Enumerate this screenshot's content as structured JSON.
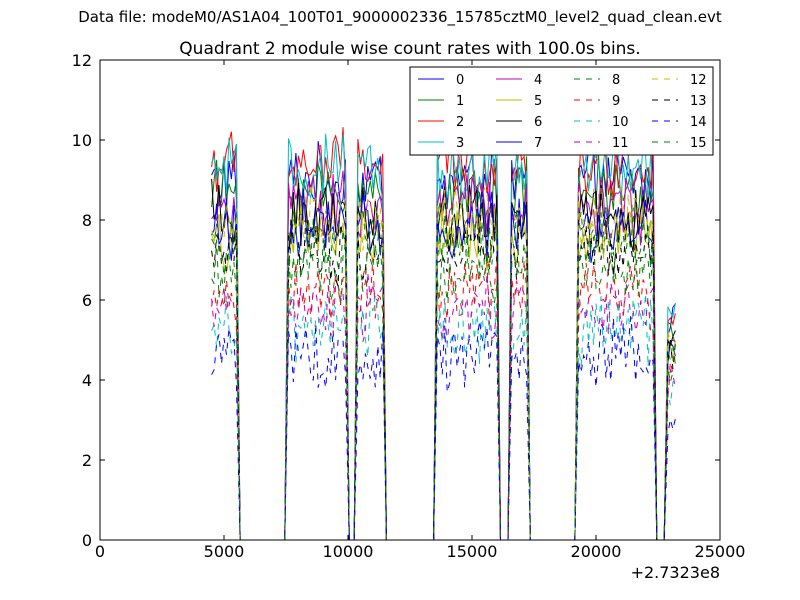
{
  "suptitle": "Data file: modeM0/AS1A04_100T01_9000002336_15785cztM0_level2_quad_clean.evt",
  "chart_data": {
    "type": "line",
    "title": "Quadrant 2 module wise count rates with 100.0s bins.",
    "xlabel": "",
    "ylabel": "",
    "xlim": [
      0,
      25000
    ],
    "ylim": [
      0,
      12
    ],
    "xticks": [
      "0",
      "5000",
      "10000",
      "15000",
      "20000",
      "25000"
    ],
    "xtick_values": [
      0,
      5000,
      10000,
      15000,
      20000,
      25000
    ],
    "yticks": [
      "0",
      "2",
      "4",
      "6",
      "8",
      "10",
      "12"
    ],
    "ytick_values": [
      0,
      2,
      4,
      6,
      8,
      10,
      12
    ],
    "x_offset_label": "+2.7323e8",
    "legend_position": "top-right",
    "legend_columns": 4,
    "segments": [
      {
        "start": 4500,
        "end": 5500
      },
      {
        "start": 7600,
        "end": 9900
      },
      {
        "start": 10400,
        "end": 11400
      },
      {
        "start": 13600,
        "end": 16000
      },
      {
        "start": 16600,
        "end": 17200
      },
      {
        "start": 19300,
        "end": 22300
      },
      {
        "start": 22900,
        "end": 23200
      }
    ],
    "drops": [
      5700,
      7400,
      10100,
      11500,
      13500,
      16300,
      17400,
      19200,
      22500,
      23000
    ],
    "series": [
      {
        "name": "0",
        "color": "#0000ff",
        "dash": "solid",
        "level": 9.0
      },
      {
        "name": "1",
        "color": "#008000",
        "dash": "solid",
        "level": 8.7
      },
      {
        "name": "2",
        "color": "#ff0000",
        "dash": "solid",
        "level": 9.4
      },
      {
        "name": "3",
        "color": "#00bfbf",
        "dash": "solid",
        "level": 9.2
      },
      {
        "name": "4",
        "color": "#bf00bf",
        "dash": "solid",
        "level": 8.3
      },
      {
        "name": "5",
        "color": "#bfbf00",
        "dash": "solid",
        "level": 7.6
      },
      {
        "name": "6",
        "color": "#000000",
        "dash": "solid",
        "level": 8.1
      },
      {
        "name": "7",
        "color": "#0000ff",
        "dash": "solid",
        "level": 7.8
      },
      {
        "name": "8",
        "color": "#008000",
        "dash": "dashed",
        "level": 7.4
      },
      {
        "name": "9",
        "color": "#ff0000",
        "dash": "dashed",
        "level": 6.2
      },
      {
        "name": "10",
        "color": "#00bfbf",
        "dash": "dashed",
        "level": 5.3
      },
      {
        "name": "11",
        "color": "#bf00bf",
        "dash": "dashed",
        "level": 5.8
      },
      {
        "name": "12",
        "color": "#bfbf00",
        "dash": "dashed",
        "level": 8.0
      },
      {
        "name": "13",
        "color": "#000000",
        "dash": "dashed",
        "level": 7.2
      },
      {
        "name": "14",
        "color": "#0000ff",
        "dash": "dashed",
        "level": 4.6
      },
      {
        "name": "15",
        "color": "#008000",
        "dash": "dashed",
        "level": 6.7
      }
    ]
  }
}
